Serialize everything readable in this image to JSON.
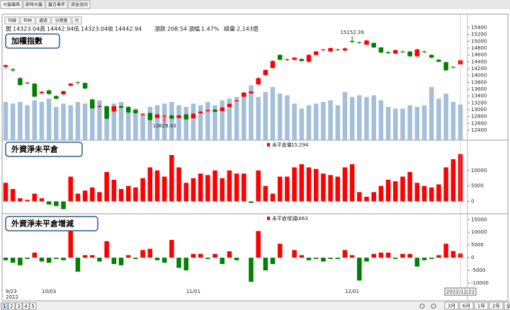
{
  "tabs": [
    "大盤籌碼",
    "即時大盤",
    "盤日事件",
    "資金流向"
  ],
  "toolbar": [
    "均線",
    "布林",
    "通道",
    "分價量",
    "台"
  ],
  "info": [
    {
      "name": "開",
      "value": "14323.04"
    },
    {
      "name": "高",
      "value": "14442.94"
    },
    {
      "name": "低",
      "value": "14323.04"
    },
    {
      "name": "收",
      "value": "14442.94"
    },
    {
      "name": "漲跌",
      "value": "208.54"
    },
    {
      "name": "漲幅",
      "value": "1.47%"
    },
    {
      "name": "總量",
      "value": "2,143億"
    }
  ],
  "pages": [
    "1",
    "2",
    "3",
    "4",
    "5"
  ],
  "ranges": [
    "3月",
    "6月",
    "1年",
    "2年",
    "全部"
  ],
  "chart_data": [
    {
      "type": "candlestick",
      "label": "加權指數",
      "up_color": "#ff0000",
      "down_color": "#008000",
      "volume_color": "#a3bfd9",
      "open": [
        14250,
        14180,
        13920,
        13780,
        13760,
        13480,
        13560,
        13400,
        13450,
        13700,
        13800,
        13780,
        13300,
        13080,
        13100,
        12950,
        13100,
        13080,
        12990,
        12850,
        12900,
        12760,
        12800,
        12830,
        12760,
        12860,
        12750,
        12900,
        12960,
        13000,
        12960,
        13080,
        13250,
        13380,
        13480,
        13740,
        14010,
        14220,
        14600,
        14450,
        14460,
        14480,
        14400,
        14600,
        14740,
        14700,
        14760,
        14730,
        15010,
        14970,
        14900,
        14950,
        14820,
        14680,
        14640,
        14700,
        14700,
        14560,
        14700,
        14600,
        14460,
        14390,
        14250,
        14323.04
      ],
      "high": [
        14330,
        14220,
        13950,
        13820,
        13780,
        13560,
        13600,
        13420,
        13560,
        13780,
        13830,
        13800,
        13320,
        13150,
        13120,
        13120,
        13130,
        13100,
        13010,
        12900,
        12920,
        12880,
        12850,
        12850,
        12850,
        12880,
        12900,
        12960,
        13000,
        13020,
        13080,
        13180,
        13290,
        13520,
        13540,
        13950,
        14180,
        14450,
        14620,
        14500,
        14540,
        14500,
        14620,
        14720,
        14780,
        14820,
        14790,
        14820,
        15152.39,
        14990,
        15040,
        14960,
        14830,
        14720,
        14760,
        14730,
        14710,
        14780,
        14730,
        14620,
        14480,
        14400,
        14270,
        14442.94
      ],
      "low": [
        14200,
        14100,
        13700,
        13740,
        13360,
        13450,
        13430,
        13300,
        13430,
        13680,
        13740,
        13600,
        13020,
        13050,
        12720,
        12930,
        13040,
        12900,
        12880,
        12820,
        12680,
        12740,
        12629.43,
        12720,
        12740,
        12700,
        12740,
        12880,
        12940,
        12920,
        12950,
        13060,
        13230,
        13360,
        13460,
        13720,
        14000,
        14200,
        14440,
        14420,
        14440,
        14400,
        14380,
        14590,
        14720,
        14680,
        14720,
        14700,
        14940,
        14920,
        14890,
        14800,
        14650,
        14620,
        14620,
        14660,
        14550,
        14540,
        14650,
        14500,
        14390,
        14130,
        14200,
        14323.04
      ],
      "close": [
        14300,
        14150,
        13720,
        13790,
        13380,
        13520,
        13460,
        13320,
        13540,
        13760,
        13780,
        13620,
        13040,
        13100,
        12740,
        13100,
        13060,
        12920,
        12900,
        12870,
        12700,
        12860,
        12820,
        12740,
        12830,
        12720,
        12880,
        12940,
        12990,
        12940,
        13060,
        13170,
        13270,
        13500,
        13530,
        13920,
        14160,
        14420,
        14460,
        14470,
        14520,
        14420,
        14600,
        14700,
        14760,
        14800,
        14740,
        14790,
        14980,
        14950,
        15020,
        14820,
        14670,
        14650,
        14740,
        14690,
        14560,
        14760,
        14680,
        14520,
        14400,
        14150,
        14234.4,
        14442.94
      ],
      "volume": [
        2300,
        2200,
        2300,
        2100,
        2400,
        2300,
        2500,
        2000,
        2200,
        2100,
        2300,
        2200,
        2300,
        2400,
        2000,
        2200,
        2300,
        2000,
        1900,
        1600,
        2000,
        2100,
        2200,
        2300,
        2100,
        2000,
        2200,
        2100,
        2300,
        2100,
        2400,
        2500,
        2600,
        2700,
        3300,
        2600,
        2900,
        3200,
        2800,
        2700,
        2200,
        1900,
        2100,
        2200,
        2300,
        2400,
        2100,
        2900,
        2600,
        2700,
        2600,
        2700,
        2400,
        2000,
        1900,
        1900,
        2100,
        2000,
        2100,
        3200,
        2500,
        2800,
        2300,
        2143
      ],
      "volume_lim": [
        0,
        7500
      ],
      "ylim": [
        12110,
        15750
      ],
      "yticks": [
        12400,
        12600,
        12800,
        13000,
        13200,
        13400,
        13600,
        13800,
        14000,
        14200,
        14400,
        14600,
        14800,
        15000,
        15200,
        15400
      ],
      "annotations": [
        {
          "ref": "high",
          "index": 48,
          "color": "#cc33cc"
        },
        {
          "ref": "low",
          "index": 22,
          "color": "#6677aa"
        }
      ]
    },
    {
      "type": "bar",
      "label": "外資淨未平倉",
      "series_name": "未平倉量",
      "positive_color": "#ff0000",
      "negative_color": "#008000",
      "values": [
        6000,
        4000,
        1000,
        500,
        2500,
        1000,
        -1000,
        -1500,
        -2500,
        8000,
        2500,
        3500,
        4500,
        3000,
        9500,
        7000,
        4000,
        5000,
        4500,
        7500,
        11000,
        10000,
        8000,
        15000,
        11000,
        6000,
        7500,
        9000,
        8500,
        10000,
        7500,
        10000,
        9000,
        9000,
        -500,
        10000,
        5000,
        2500,
        8000,
        8000,
        11000,
        12000,
        11000,
        10500,
        9000,
        8500,
        8000,
        11000,
        12000,
        3000,
        1500,
        3000,
        5000,
        7000,
        6500,
        8000,
        9500,
        6000,
        5000,
        4500,
        5500,
        11000,
        13631,
        15294
      ],
      "value_labels": [
        null,
        null,
        null,
        null,
        null,
        null,
        null,
        null,
        null,
        null,
        null,
        null,
        null,
        null,
        null,
        null,
        null,
        null,
        null,
        null,
        null,
        null,
        null,
        null,
        null,
        null,
        null,
        null,
        null,
        null,
        null,
        null,
        null,
        null,
        null,
        null,
        null,
        null,
        null,
        null,
        null,
        null,
        null,
        null,
        null,
        null,
        null,
        null,
        null,
        null,
        null,
        null,
        null,
        null,
        null,
        null,
        null,
        null,
        null,
        null,
        null,
        null,
        null,
        "15,294"
      ],
      "ylim": [
        -4000,
        19800
      ],
      "yticks": [
        0,
        5000,
        10000
      ]
    },
    {
      "type": "bar",
      "label": "外資淨未平倉增減",
      "series_name": "未平倉增減",
      "positive_color": "#ff0000",
      "negative_color": "#008000",
      "values": [
        -1000,
        -2000,
        -3000,
        -500,
        2000,
        -1500,
        -2000,
        -500,
        -1000,
        10500,
        -5500,
        1000,
        1000,
        -1500,
        6500,
        -2500,
        -3000,
        1000,
        -500,
        3000,
        3500,
        -1000,
        -2000,
        7000,
        -4000,
        -5000,
        1500,
        1500,
        -500,
        1500,
        -2500,
        2500,
        -1000,
        0,
        -9500,
        10500,
        -5000,
        -2500,
        5500,
        0,
        3000,
        1000,
        -1000,
        -500,
        -1500,
        -500,
        -500,
        3000,
        1000,
        -9000,
        -1500,
        1500,
        2000,
        2000,
        -500,
        1500,
        1500,
        -3500,
        -1000,
        -500,
        1000,
        5500,
        2631,
        1663
      ],
      "ylim": [
        -11400,
        17300
      ],
      "yticks": [
        -10000,
        -5000,
        0,
        5000,
        10000,
        15000
      ],
      "categories": [
        "9/23",
        null,
        null,
        null,
        null,
        null,
        "10/03",
        null,
        null,
        null,
        null,
        null,
        null,
        null,
        null,
        null,
        null,
        null,
        null,
        null,
        null,
        null,
        null,
        null,
        null,
        null,
        "11/01",
        null,
        null,
        null,
        null,
        null,
        null,
        null,
        null,
        null,
        null,
        null,
        null,
        null,
        null,
        null,
        null,
        null,
        null,
        null,
        null,
        null,
        "12/01",
        null,
        null,
        null,
        null,
        null,
        null,
        null,
        null,
        null,
        null,
        null,
        null,
        null,
        null,
        "2022/12/22"
      ],
      "year_label": "2022"
    }
  ]
}
